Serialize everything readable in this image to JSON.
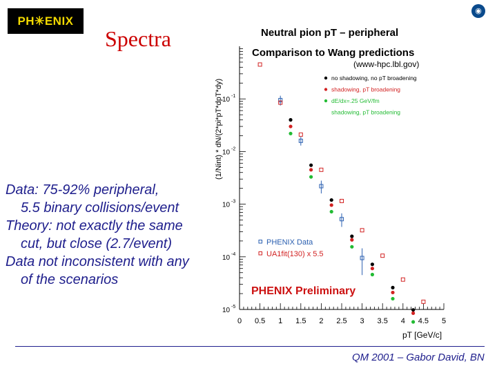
{
  "logo": {
    "text": "PH✳ENIX"
  },
  "slide": {
    "title": "Spectra"
  },
  "body_lines": [
    "Data: 75-92% peripheral,",
    "5.5 binary collisions/event",
    "Theory: not exactly the same",
    "cut, but close (2.7/event)",
    "Data not inconsistent with any",
    "of the scenarios"
  ],
  "footer": {
    "text": "QM 2001 – Gabor David, BN"
  },
  "colors": {
    "title": "#cc0000",
    "text": "#1e1e8c",
    "logo_bg": "#000000",
    "logo_text": "#f2d900",
    "data": "#2a5fb0",
    "ua1": "#d22222",
    "green": "#22bb33",
    "black": "#000000"
  },
  "chart_data": {
    "type": "scatter",
    "title": "Neutral pion pT – peripheral",
    "subtitle": "Comparison to Wang predictions",
    "source": "(www-hpc.lbl.gov)",
    "xlabel": "pT [GeV/c]",
    "ylabel": "(1/Nint) * dN/(2*pi*pT*dpT*dy)",
    "xlim": [
      0,
      5
    ],
    "ylim": [
      1e-05,
      1
    ],
    "yscale": "log",
    "xticks": [
      "0",
      "0.5",
      "1",
      "1.5",
      "2",
      "2.5",
      "3",
      "3.5",
      "4",
      "4.5",
      "5"
    ],
    "yticks": [
      {
        "base": "10",
        "exp": "-1",
        "value": 0.1
      },
      {
        "base": "10",
        "exp": "-2",
        "value": 0.01
      },
      {
        "base": "10",
        "exp": "-3",
        "value": 0.001
      },
      {
        "base": "10",
        "exp": "-4",
        "value": 0.0001
      },
      {
        "base": "10",
        "exp": "-5",
        "value": 1e-05
      }
    ],
    "legend_top": [
      {
        "label": "no shadowing, no pT broadening",
        "color": "#000000"
      },
      {
        "label": "shadowing, pT broadening",
        "color": "#d22222"
      },
      {
        "label": "dE/dx=.25 GeV/fm",
        "color": "#22bb33"
      },
      {
        "label": "shadowing, pT broadening",
        "color": "#22bb33"
      }
    ],
    "legend_bottom": [
      {
        "label": "PHENIX Data",
        "color": "#2a5fb0"
      },
      {
        "label": "UA1fit(130) x 5.5",
        "color": "#d22222"
      }
    ],
    "annotation": "PHENIX Preliminary",
    "series": [
      {
        "name": "PHENIX Data",
        "marker": "open-square",
        "color": "#2a5fb0",
        "x": [
          1.0,
          1.5,
          2.0,
          2.5,
          3.0
        ],
        "y": [
          0.095,
          0.016,
          0.0022,
          0.00052,
          9.5e-05
        ],
        "yerr": [
          0.02,
          0.003,
          0.0006,
          0.00015,
          5e-05
        ]
      },
      {
        "name": "UA1fit(130) x 5.5",
        "marker": "open-square",
        "color": "#d22222",
        "x": [
          0.5,
          1.0,
          1.5,
          2.0,
          2.5,
          3.0,
          3.5,
          4.0,
          4.5
        ],
        "y": [
          0.45,
          0.085,
          0.021,
          0.0045,
          0.00115,
          0.00032,
          0.000105,
          3.7e-05,
          1.4e-05
        ]
      },
      {
        "name": "no shadowing, no pT broadening",
        "marker": "dot",
        "color": "#000000",
        "x": [
          1.25,
          1.75,
          2.25,
          2.75,
          3.25,
          3.75,
          4.25
        ],
        "y": [
          0.04,
          0.0055,
          0.0012,
          0.000245,
          7.2e-05,
          2.6e-05,
          9.8e-06
        ]
      },
      {
        "name": "shadowing, pT broadening",
        "marker": "dot",
        "color": "#d22222",
        "x": [
          1.25,
          1.75,
          2.25,
          2.75,
          3.25,
          3.75,
          4.25
        ],
        "y": [
          0.03,
          0.0045,
          0.00096,
          0.00021,
          6e-05,
          2.1e-05,
          8.5e-06
        ]
      },
      {
        "name": "dE/dx=.25 GeV/fm, shadowing, pT broadening",
        "marker": "dot",
        "color": "#22bb33",
        "x": [
          1.25,
          1.75,
          2.25,
          2.75,
          3.25,
          3.75,
          4.25
        ],
        "y": [
          0.022,
          0.0033,
          0.00072,
          0.000155,
          4.6e-05,
          1.6e-05,
          5.8e-06
        ]
      }
    ]
  }
}
